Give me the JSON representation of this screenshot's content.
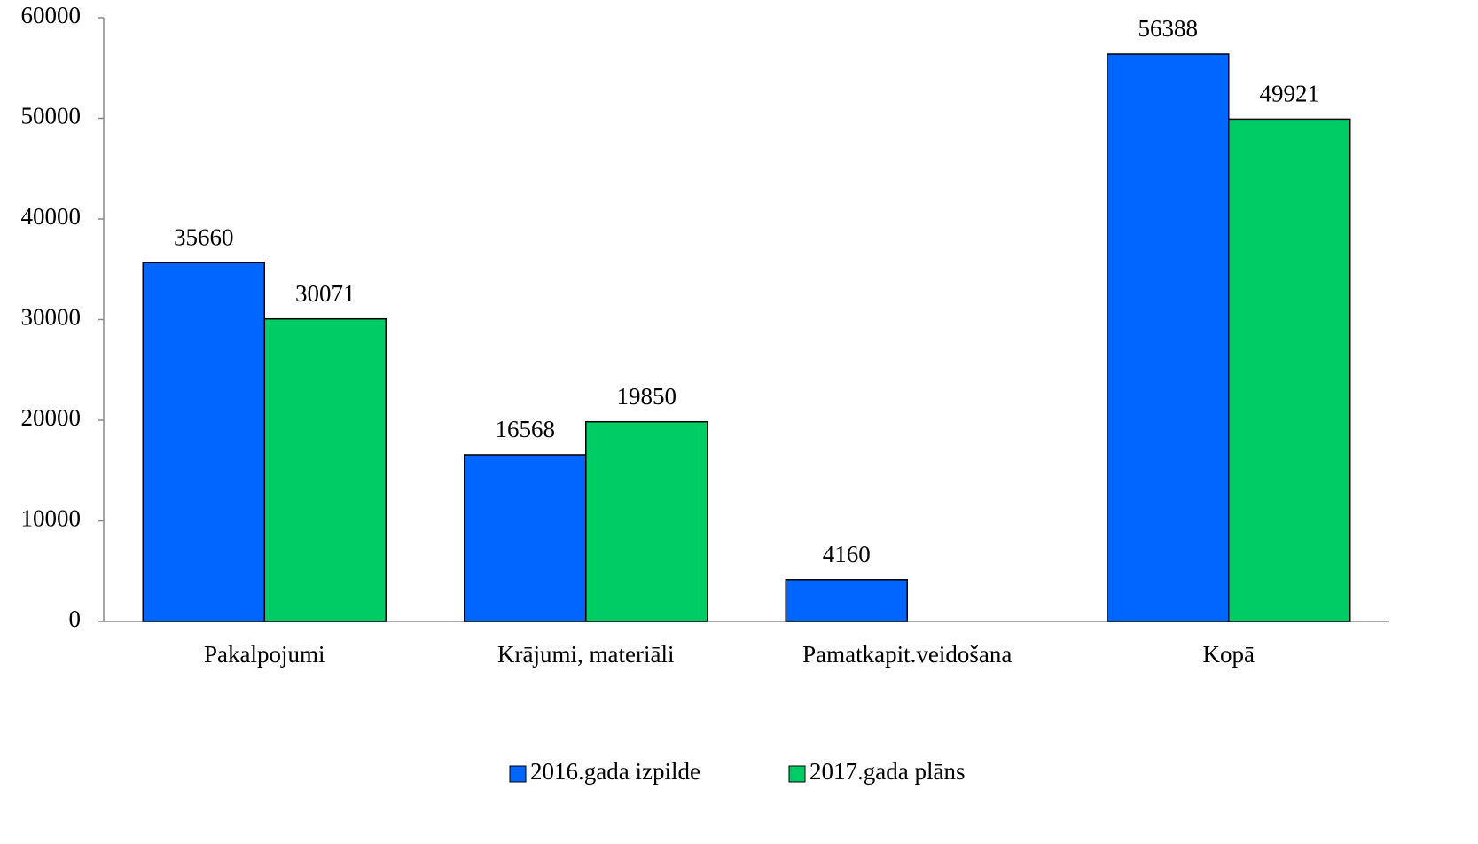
{
  "chart_data": {
    "type": "bar",
    "categories": [
      "Pakalpojumi",
      "Krājumi, materiāli",
      "Pamatkapit.veidošana",
      "Kopā"
    ],
    "series": [
      {
        "name": "2016.gada izpilde",
        "color": "#0066ff",
        "values": [
          35660,
          16568,
          4160,
          56388
        ]
      },
      {
        "name": "2017.gada plāns",
        "color": "#00cc66",
        "values": [
          30071,
          19850,
          null,
          49921
        ]
      }
    ],
    "ylim": [
      0,
      60000
    ],
    "yticks": [
      0,
      10000,
      20000,
      30000,
      40000,
      50000,
      60000
    ],
    "grid": false,
    "legend": "bottom"
  }
}
